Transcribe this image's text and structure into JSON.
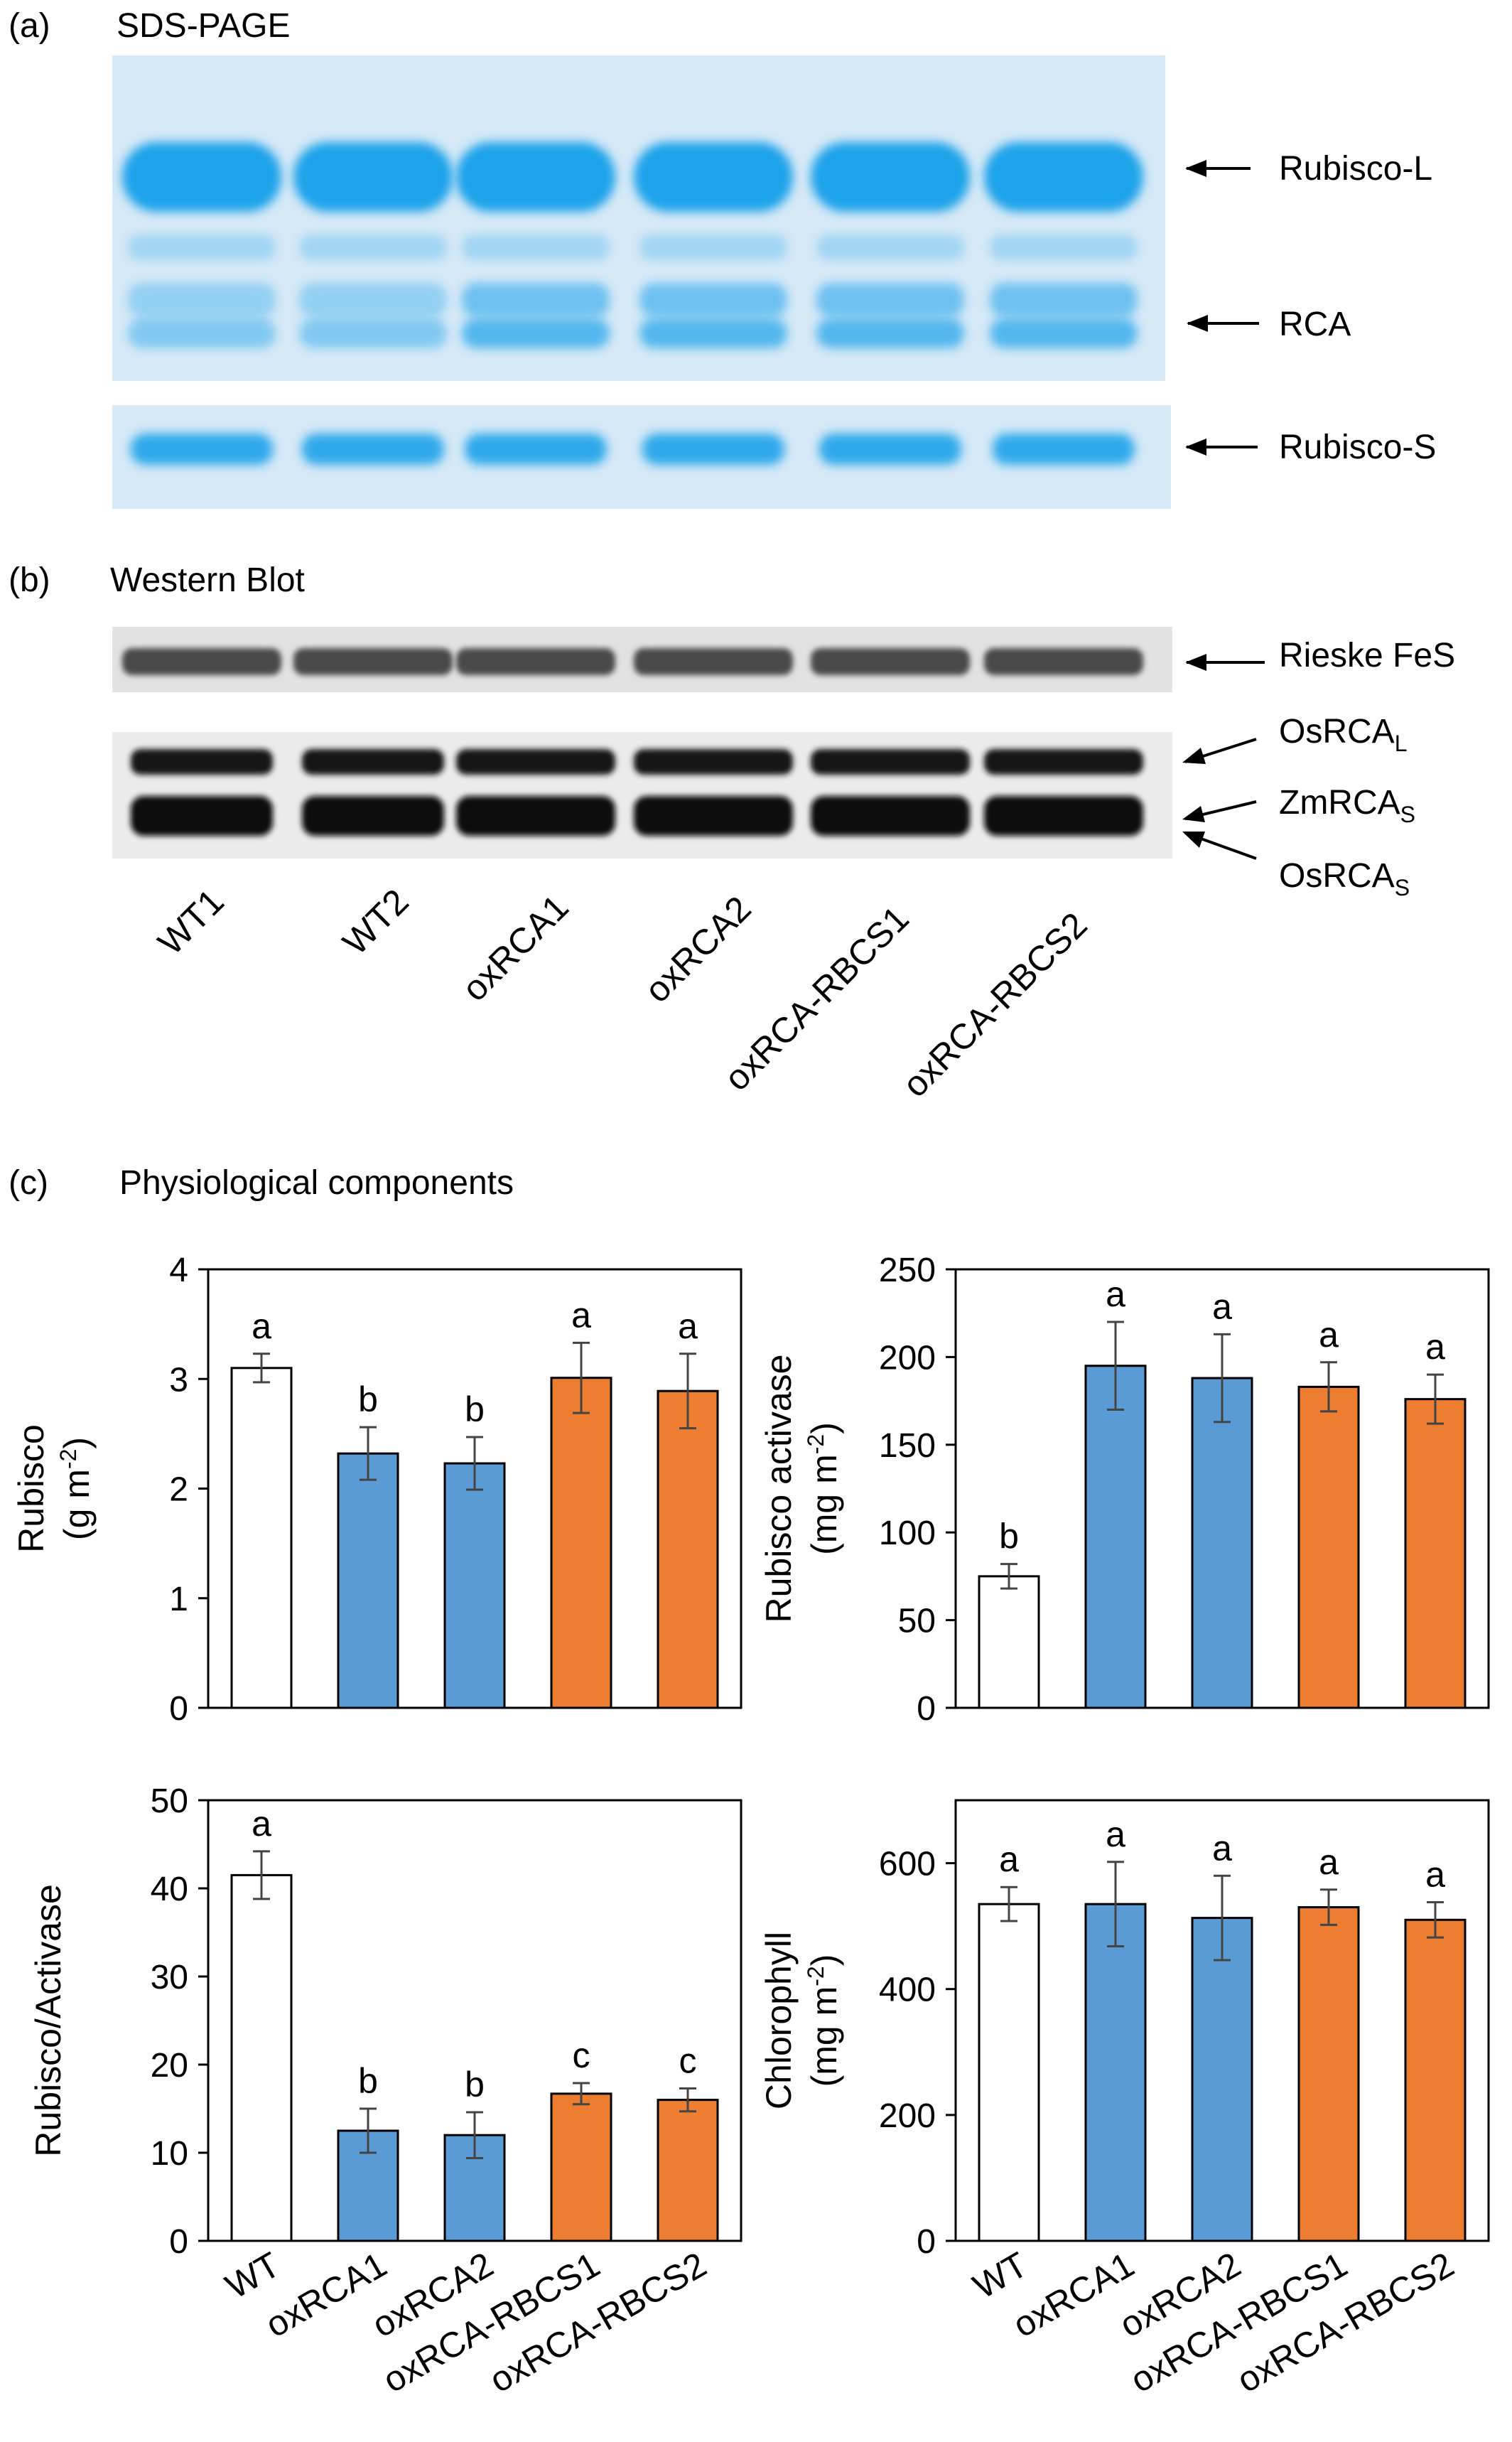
{
  "panel_a": {
    "letter": "(a)",
    "title": "SDS-PAGE",
    "bands": [
      "Rubisco-L",
      "RCA",
      "Rubisco-S"
    ],
    "colors": {
      "gel_bg": "#d6e9f7",
      "band": "#1aa3ea"
    }
  },
  "panel_b": {
    "letter": "(b)",
    "title": "Western Blot",
    "bands": [
      {
        "base": "Rieske FeS",
        "sub": ""
      },
      {
        "base": "OsRCA",
        "sub": "L"
      },
      {
        "base": "ZmRCA",
        "sub": "S"
      },
      {
        "base": "OsRCA",
        "sub": "S"
      }
    ],
    "lanes": [
      "WT1",
      "WT2",
      "oxRCA1",
      "oxRCA2",
      "oxRCA-RBCS1",
      "oxRCA-RBCS2"
    ]
  },
  "panel_c": {
    "letter": "(c)",
    "title": "Physiological components"
  },
  "colors": {
    "wt": "#ffffff",
    "oxRCA": "#5b9bd5",
    "oxRCA_RBCS": "#ed7d31"
  },
  "chart_data": [
    {
      "type": "bar",
      "categories": [
        "WT",
        "oxRCA1",
        "oxRCA2",
        "oxRCA-RBCS1",
        "oxRCA-RBCS2"
      ],
      "values": [
        3.1,
        2.32,
        2.23,
        3.01,
        2.89
      ],
      "errors": [
        0.13,
        0.24,
        0.24,
        0.32,
        0.34
      ],
      "letters": [
        "a",
        "b",
        "b",
        "a",
        "a"
      ],
      "ylabel": "Rubisco",
      "yunit_base": "(g m",
      "yunit_sup": "-2",
      "yunit_end": ")",
      "ylim": [
        0,
        4
      ],
      "yticks": [
        "0",
        "1",
        "2",
        "3",
        "4"
      ]
    },
    {
      "type": "bar",
      "categories": [
        "WT",
        "oxRCA1",
        "oxRCA2",
        "oxRCA-RBCS1",
        "oxRCA-RBCS2"
      ],
      "values": [
        75,
        195,
        188,
        183,
        176
      ],
      "errors": [
        7,
        25,
        25,
        14,
        14
      ],
      "letters": [
        "b",
        "a",
        "a",
        "a",
        "a"
      ],
      "ylabel": "Rubisco activase",
      "yunit_base": "(mg m",
      "yunit_sup": "-2",
      "yunit_end": ")",
      "ylim": [
        0,
        250
      ],
      "yticks": [
        "0",
        "50",
        "100",
        "150",
        "200",
        "250"
      ]
    },
    {
      "type": "bar",
      "categories": [
        "WT",
        "oxRCA1",
        "oxRCA2",
        "oxRCA-RBCS1",
        "oxRCA-RBCS2"
      ],
      "values": [
        41.5,
        12.5,
        12,
        16.7,
        16
      ],
      "errors": [
        2.7,
        2.5,
        2.6,
        1.2,
        1.3
      ],
      "letters": [
        "a",
        "b",
        "b",
        "c",
        "c"
      ],
      "ylabel": "Rubisco/Activase",
      "yunit_base": "",
      "yunit_sup": "",
      "yunit_end": "",
      "ylim": [
        0,
        50
      ],
      "yticks": [
        "0",
        "10",
        "20",
        "30",
        "40",
        "50"
      ]
    },
    {
      "type": "bar",
      "categories": [
        "WT",
        "oxRCA1",
        "oxRCA2",
        "oxRCA-RBCS1",
        "oxRCA-RBCS2"
      ],
      "values": [
        535,
        535,
        513,
        530,
        510
      ],
      "errors": [
        27,
        67,
        67,
        28,
        28
      ],
      "letters": [
        "a",
        "a",
        "a",
        "a",
        "a"
      ],
      "ylabel": "Chlorophyll",
      "yunit_base": "(mg m",
      "yunit_sup": "-2",
      "yunit_end": ")",
      "ylim": [
        0,
        700
      ],
      "yticks": [
        "0",
        "200",
        "400",
        "600"
      ]
    }
  ]
}
